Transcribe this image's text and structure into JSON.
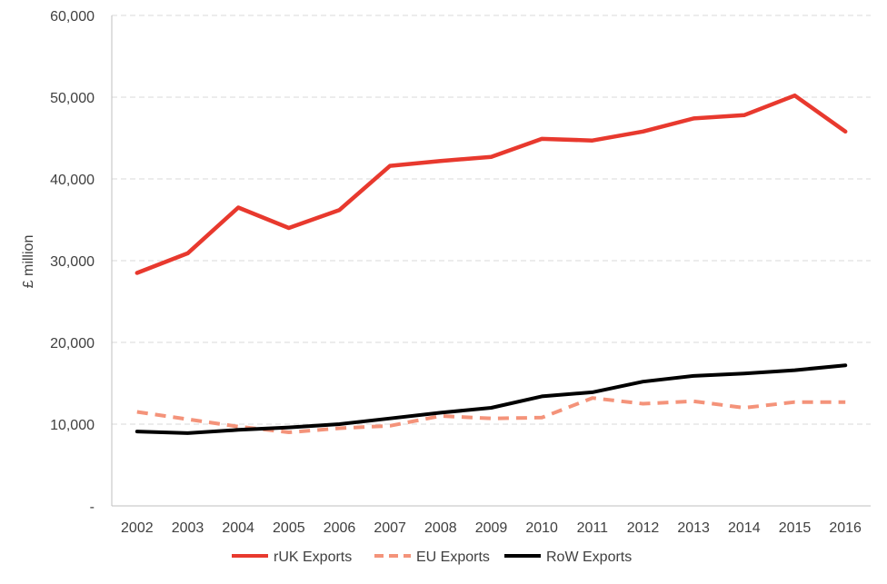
{
  "chart_data": {
    "type": "line",
    "title": "",
    "xlabel": "",
    "ylabel": "£ million",
    "ylim": [
      0,
      60000
    ],
    "yticks": [
      {
        "value": 0,
        "label": "-"
      },
      {
        "value": 10000,
        "label": "10,000"
      },
      {
        "value": 20000,
        "label": "20,000"
      },
      {
        "value": 30000,
        "label": "30,000"
      },
      {
        "value": 40000,
        "label": "40,000"
      },
      {
        "value": 50000,
        "label": "50,000"
      },
      {
        "value": 60000,
        "label": "60,000"
      }
    ],
    "grid": "horizontal-dashed",
    "legend_position": "bottom",
    "categories": [
      "2002",
      "2003",
      "2004",
      "2005",
      "2006",
      "2007",
      "2008",
      "2009",
      "2010",
      "2011",
      "2012",
      "2013",
      "2014",
      "2015",
      "2016"
    ],
    "series": [
      {
        "name": "rUK Exports",
        "color": "#e8392e",
        "dash": "solid",
        "values": [
          28500,
          30900,
          36500,
          34000,
          36200,
          41600,
          42200,
          42700,
          44900,
          44700,
          45800,
          47400,
          47800,
          50200,
          45800
        ]
      },
      {
        "name": "EU Exports",
        "color": "#f4937a",
        "dash": "dashed",
        "values": [
          11500,
          10600,
          9700,
          9000,
          9500,
          9800,
          11000,
          10700,
          10800,
          13200,
          12500,
          12800,
          12000,
          12700,
          12700
        ]
      },
      {
        "name": "RoW Exports",
        "color": "#000000",
        "dash": "solid",
        "values": [
          9100,
          8900,
          9300,
          9600,
          10000,
          10700,
          11400,
          12000,
          13400,
          13900,
          15200,
          15900,
          16200,
          16600,
          17200
        ]
      }
    ]
  }
}
